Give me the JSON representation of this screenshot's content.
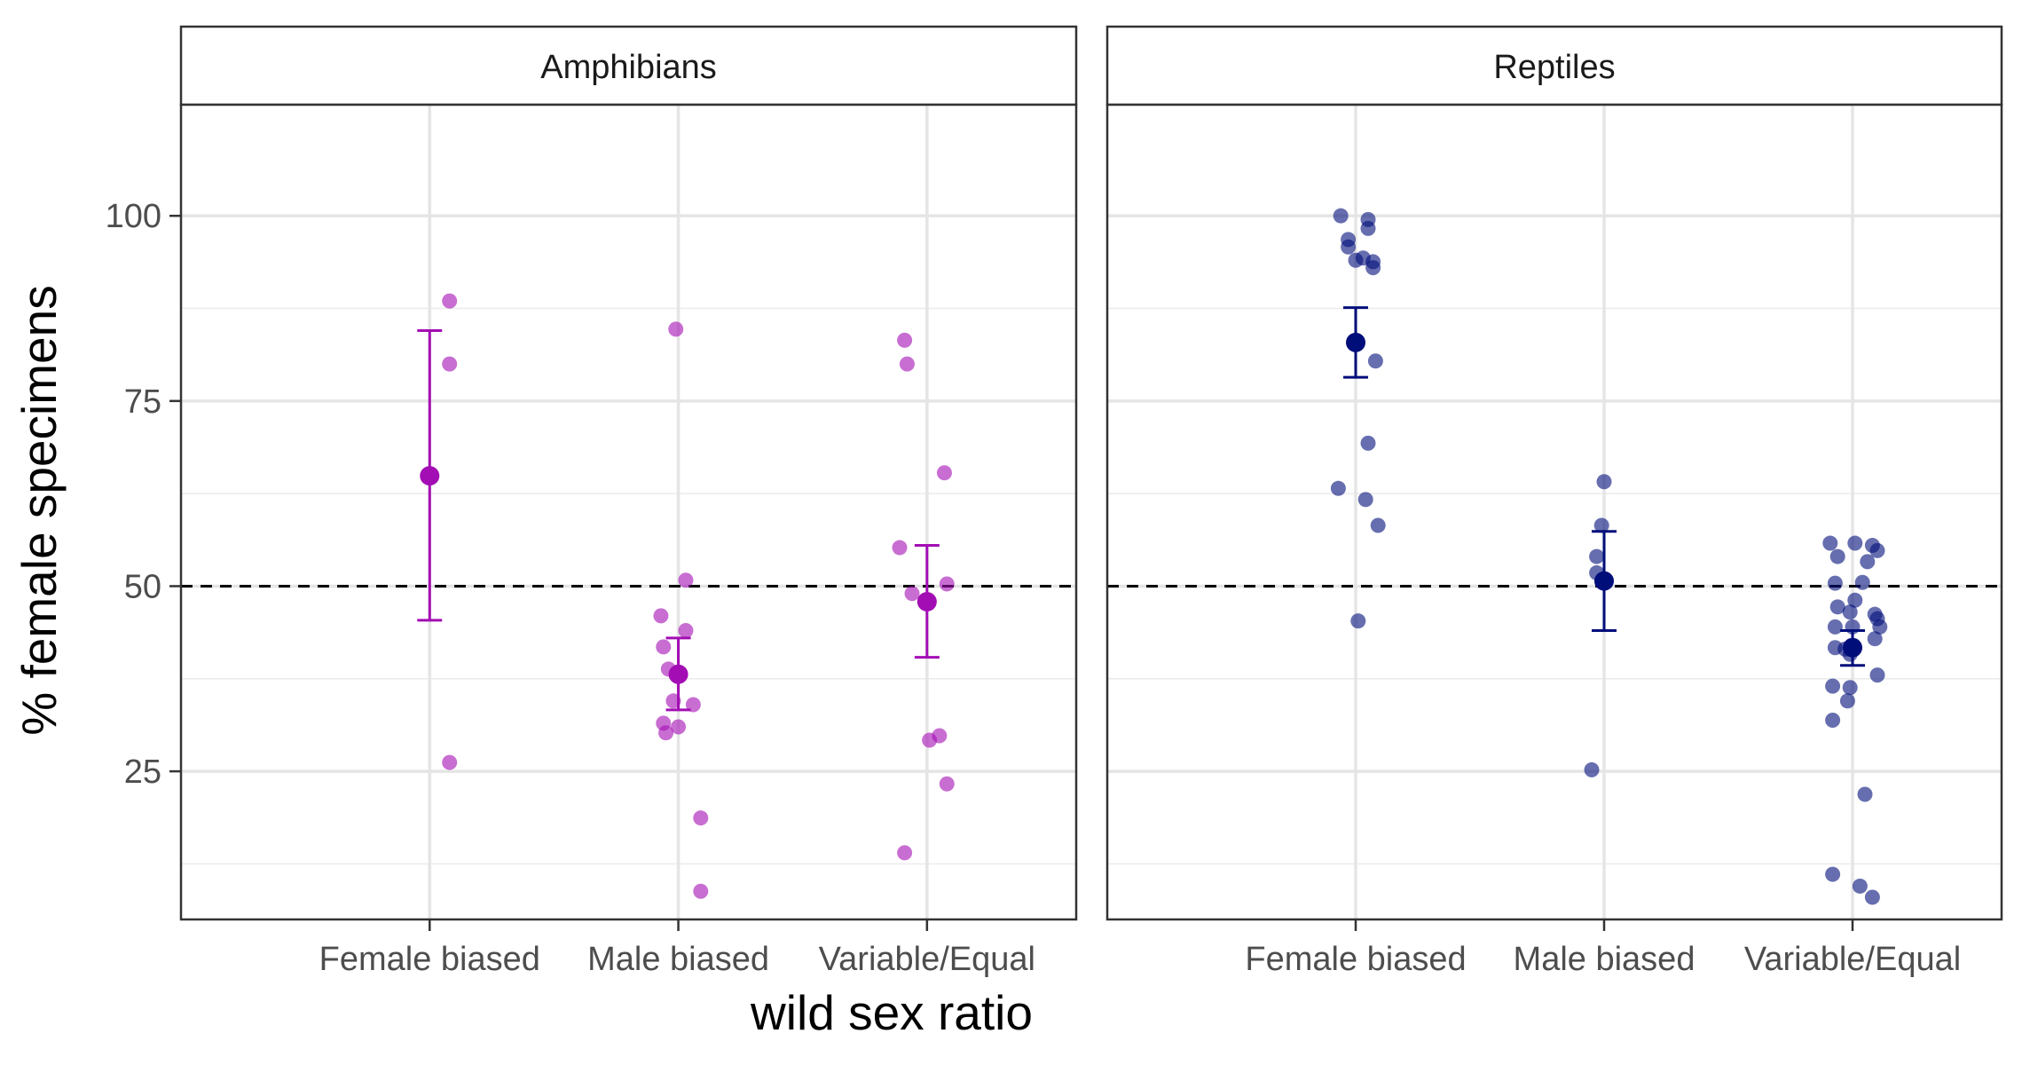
{
  "chart_data": {
    "type": "scatter",
    "xlabel": "wild sex ratio",
    "ylabel": "% female specimens",
    "categories": [
      "Female biased",
      "Male biased",
      "Variable/Equal"
    ],
    "ylim": [
      5,
      115
    ],
    "yticks": [
      25,
      50,
      75,
      100
    ],
    "reference_line": 50,
    "grid": true,
    "panels": [
      {
        "name": "Amphibians",
        "color": "#A30DB4",
        "points": [
          [
            [
              0.08,
              88.5
            ],
            [
              0.08,
              80.0
            ],
            [
              0.08,
              26.2
            ]
          ],
          [
            [
              -0.07,
              46.0
            ],
            [
              -0.06,
              41.8
            ],
            [
              -0.04,
              38.8
            ],
            [
              -0.02,
              34.5
            ],
            [
              -0.06,
              31.5
            ],
            [
              -0.05,
              30.2
            ],
            [
              0.0,
              31.0
            ],
            [
              0.06,
              34.0
            ],
            [
              0.03,
              44.0
            ],
            [
              0.03,
              50.8
            ],
            [
              -0.01,
              84.7
            ],
            [
              0.09,
              18.7
            ],
            [
              0.09,
              8.8
            ]
          ],
          [
            [
              -0.09,
              83.2
            ],
            [
              -0.08,
              80.0
            ],
            [
              -0.11,
              55.2
            ],
            [
              -0.06,
              49.0
            ],
            [
              0.07,
              65.3
            ],
            [
              0.08,
              50.3
            ],
            [
              0.05,
              29.8
            ],
            [
              0.01,
              29.2
            ],
            [
              0.08,
              23.3
            ],
            [
              -0.09,
              14.0
            ]
          ]
        ],
        "means": [
          64.9,
          38.1,
          47.9
        ],
        "ci_low": [
          45.4,
          33.3,
          40.4
        ],
        "ci_high": [
          84.5,
          43.0,
          55.5
        ]
      },
      {
        "name": "Reptiles",
        "color": "#000E7A",
        "points": [
          [
            [
              -0.06,
              100.0
            ],
            [
              0.05,
              99.5
            ],
            [
              -0.03,
              96.8
            ],
            [
              -0.03,
              95.8
            ],
            [
              0.05,
              98.3
            ],
            [
              0.03,
              94.3
            ],
            [
              0.07,
              93.8
            ],
            [
              0.07,
              93.0
            ],
            [
              0.0,
              94.0
            ],
            [
              0.08,
              80.4
            ],
            [
              0.05,
              69.3
            ],
            [
              -0.07,
              63.2
            ],
            [
              0.04,
              61.7
            ],
            [
              0.09,
              58.2
            ],
            [
              0.01,
              45.3
            ]
          ],
          [
            [
              0.0,
              64.1
            ],
            [
              -0.01,
              58.2
            ],
            [
              -0.03,
              54.0
            ],
            [
              -0.03,
              51.8
            ],
            [
              -0.05,
              25.2
            ]
          ],
          [
            [
              -0.09,
              55.8
            ],
            [
              -0.06,
              54.0
            ],
            [
              0.01,
              55.8
            ],
            [
              0.08,
              55.5
            ],
            [
              0.1,
              54.8
            ],
            [
              0.06,
              53.3
            ],
            [
              -0.07,
              50.4
            ],
            [
              0.04,
              50.5
            ],
            [
              0.01,
              48.1
            ],
            [
              -0.06,
              47.2
            ],
            [
              -0.01,
              46.5
            ],
            [
              0.09,
              46.2
            ],
            [
              0.1,
              45.6
            ],
            [
              -0.07,
              44.5
            ],
            [
              0.0,
              44.5
            ],
            [
              0.11,
              44.5
            ],
            [
              -0.07,
              41.7
            ],
            [
              -0.03,
              41.5
            ],
            [
              -0.01,
              40.8
            ],
            [
              0.09,
              42.9
            ],
            [
              -0.08,
              36.5
            ],
            [
              -0.01,
              36.3
            ],
            [
              -0.02,
              34.5
            ],
            [
              0.1,
              38.0
            ],
            [
              -0.08,
              31.9
            ],
            [
              0.05,
              21.9
            ],
            [
              -0.08,
              11.1
            ],
            [
              0.03,
              9.5
            ],
            [
              0.08,
              8.0
            ]
          ]
        ],
        "means": [
          82.9,
          50.7,
          41.7
        ],
        "ci_low": [
          78.2,
          44.0,
          39.3
        ],
        "ci_high": [
          87.6,
          57.4,
          44.0
        ]
      }
    ]
  }
}
